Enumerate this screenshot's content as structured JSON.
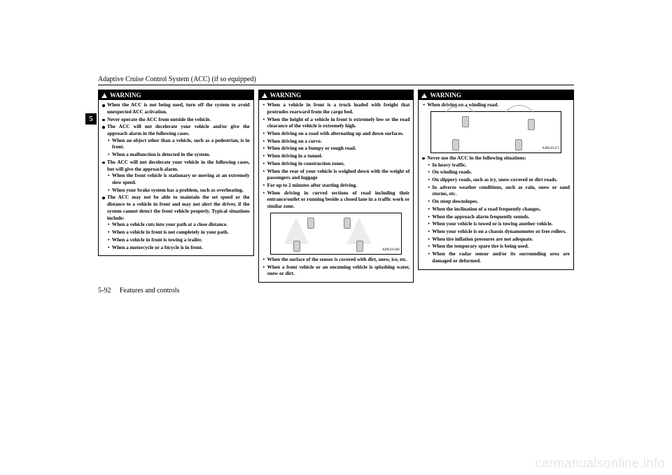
{
  "header": {
    "title": "Adaptive Cruise Control System (ACC) (if so equipped)"
  },
  "section_tab": "5",
  "warning_label": "WARNING",
  "column1": {
    "items": [
      {
        "type": "bullet",
        "text": "When the ACC is not being used, turn off the system to avoid unexpected ACC activation."
      },
      {
        "type": "bullet",
        "text": "Never operate the ACC from outside the vehicle."
      },
      {
        "type": "bullet",
        "text": "The ACC will not decelerate your vehicle and/or give the approach alarm in the following cases.",
        "sub": [
          "When an object other than a vehicle, such as a pedestrian, is in front.",
          "When a malfunction is detected in the system."
        ]
      },
      {
        "type": "bullet",
        "text": "The ACC will not decelerate your vehicle in the following cases, but will give the approach alarm.",
        "sub": [
          "When the front vehicle is stationary or moving at an extremely slow speed.",
          "When your brake system has a problem, such as overheating."
        ]
      },
      {
        "type": "bullet",
        "text": "The ACC may not be able to maintain the set speed or the distance to a vehicle in front and may not alert the driver, if the system cannot detect the front vehicle properly. Typical situations include:",
        "sub": [
          "When a vehicle cuts into your path at a close distance.",
          "When a vehicle in front is not completely in your path.",
          "When a vehicle in front is towing a trailer.",
          "When a motorcycle or a bicycle is in front."
        ]
      }
    ]
  },
  "column2": {
    "items_top": [
      "When a vehicle in front is a truck loaded with freight that protrudes rearward from the cargo bed.",
      "When the height of a vehicle in front is extremely low or the road clearance of the vehicle is extremely high.",
      "When driving on a road with alternating up and down surfaces.",
      "When driving on a curve.",
      "When driving on a bumpy or rough road.",
      "When driving in a tunnel.",
      "When driving in construction zones.",
      "When the rear of your vehicle is weighed down with the weight of passengers and luggage",
      "For up to 2 minutes after starting driving.",
      "When driving in curved sections of road including their entrance/outlet or running beside a closed lane in a traffic work or similar zone."
    ],
    "diagram1_label": "AJM101468",
    "items_bottom": [
      "When the surface of the sensor is covered with dirt, snow, ice, etc.",
      "When a front vehicle or an oncoming vehicle is splashing water, snow or dirt."
    ]
  },
  "column3": {
    "item_top": "When driving on a winding road.",
    "diagram2_label": "AJM101471",
    "bullet": "Never use the ACC in the following situations:",
    "sub": [
      "In heavy traffic.",
      "On winding roads.",
      "On slippery roads, such as icy, snow-covered or dirt roads.",
      "In adverse weather conditions, such as rain, snow or sand storms, etc.",
      "On steep downslopes.",
      "When the inclination of a road frequently changes.",
      "When the approach alarm frequently sounds.",
      "When your vehicle is towed or is towing another vehicle.",
      "When your vehicle is on a chassis dynamometer or free rollers.",
      "When tire inflation pressures are not adequate.",
      "When the temporary spare tire is being used.",
      "When the radar sensor and/or its surrounding area are damaged or deformed."
    ]
  },
  "footer": {
    "page": "5-92",
    "section": "Features and controls"
  },
  "watermark": "carmanualsonline.info"
}
